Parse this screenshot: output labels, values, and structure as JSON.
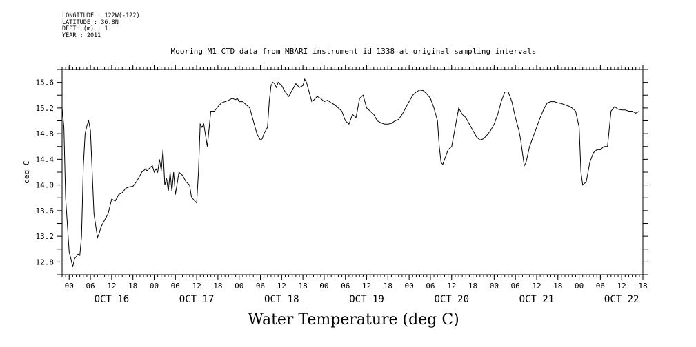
{
  "metadata": {
    "longitude": "LONGITUDE : 122W(-122)",
    "latitude": "LATITUDE : 36.8N",
    "depth": "DEPTH (m) : 1",
    "year": "YEAR : 2011"
  },
  "chart_data": {
    "type": "line",
    "title": "Mooring M1 CTD data from MBARI instrument id 1338 at original sampling intervals",
    "xlabel": "",
    "ylabel": "deg C",
    "footer_title": "Water Temperature (deg C)",
    "x_unit": "hours since 2011-10-16 00:00",
    "xlim": [
      -2,
      162
    ],
    "ylim": [
      12.6,
      15.8
    ],
    "yticks": [
      "12.8",
      "13.2",
      "13.6",
      "14.0",
      "14.4",
      "14.8",
      "15.2",
      "15.6"
    ],
    "hour_ticks": [
      {
        "h": 0,
        "label": "00"
      },
      {
        "h": 6,
        "label": "06"
      },
      {
        "h": 12,
        "label": "12"
      },
      {
        "h": 18,
        "label": "18"
      },
      {
        "h": 24,
        "label": "00"
      },
      {
        "h": 30,
        "label": "06"
      },
      {
        "h": 36,
        "label": "12"
      },
      {
        "h": 42,
        "label": "18"
      },
      {
        "h": 48,
        "label": "00"
      },
      {
        "h": 54,
        "label": "06"
      },
      {
        "h": 60,
        "label": "12"
      },
      {
        "h": 66,
        "label": "18"
      },
      {
        "h": 72,
        "label": "00"
      },
      {
        "h": 78,
        "label": "06"
      },
      {
        "h": 84,
        "label": "12"
      },
      {
        "h": 90,
        "label": "18"
      },
      {
        "h": 96,
        "label": "00"
      },
      {
        "h": 102,
        "label": "06"
      },
      {
        "h": 108,
        "label": "12"
      },
      {
        "h": 114,
        "label": "18"
      },
      {
        "h": 120,
        "label": "00"
      },
      {
        "h": 126,
        "label": "06"
      },
      {
        "h": 132,
        "label": "12"
      },
      {
        "h": 138,
        "label": "18"
      },
      {
        "h": 144,
        "label": "00"
      },
      {
        "h": 150,
        "label": "06"
      },
      {
        "h": 156,
        "label": "12"
      },
      {
        "h": 162,
        "label": "18"
      }
    ],
    "day_labels": [
      {
        "h": 12,
        "label": "OCT 16"
      },
      {
        "h": 36,
        "label": "OCT 17"
      },
      {
        "h": 60,
        "label": "OCT 18"
      },
      {
        "h": 84,
        "label": "OCT 19"
      },
      {
        "h": 108,
        "label": "OCT 20"
      },
      {
        "h": 132,
        "label": "OCT 21"
      },
      {
        "h": 156,
        "label": "OCT 22"
      }
    ],
    "series": [
      {
        "x": [
          -2,
          -1.5,
          -1,
          0,
          0.5,
          1,
          1.5,
          2,
          2.5,
          3,
          3.5,
          4,
          4.5,
          5,
          5.5,
          6,
          7,
          8,
          8.5,
          9,
          10,
          11,
          12,
          13,
          14,
          15,
          16,
          17,
          18,
          19,
          20,
          20.5,
          21,
          21.5,
          22,
          22.5,
          23,
          23.5,
          24,
          24.5,
          25,
          25.5,
          26,
          26.5,
          27,
          27.5,
          28,
          28.5,
          29,
          29.5,
          30,
          31,
          32,
          33,
          34,
          34.5,
          35,
          35.5,
          36,
          36.5,
          37,
          37.5,
          38,
          39,
          40,
          41,
          42,
          43,
          44,
          45,
          46,
          47,
          47.5,
          48,
          49,
          50,
          51,
          51.5,
          52,
          52.5,
          53,
          53.5,
          54,
          54.5,
          55,
          55.5,
          56,
          56.5,
          57,
          57.5,
          58,
          58.5,
          59,
          60,
          61,
          62,
          63,
          64,
          65,
          66,
          66.5,
          67,
          68,
          68.5,
          69,
          70,
          71,
          72,
          73,
          74,
          75,
          76,
          77,
          78,
          79,
          80,
          81,
          82,
          83,
          84,
          85,
          86,
          87,
          88,
          89,
          90,
          91,
          92,
          93,
          94,
          95,
          96,
          97,
          98,
          99,
          100,
          101,
          102,
          103,
          104,
          104.5,
          105,
          105.5,
          106,
          107,
          108,
          109,
          110,
          111,
          112,
          113,
          114,
          115,
          116,
          117,
          118,
          119,
          120,
          121,
          122,
          123,
          124,
          125,
          126,
          127,
          127.5,
          128,
          128.5,
          129,
          130,
          131,
          132,
          133,
          134,
          135,
          136,
          137,
          138,
          139,
          140,
          141,
          142,
          143,
          144,
          144.5,
          145,
          146,
          147,
          148,
          149,
          150,
          151,
          152,
          153,
          154,
          155,
          156,
          157,
          158,
          159,
          160,
          161
        ],
        "y": [
          15.2,
          14.9,
          13.8,
          12.95,
          12.85,
          12.72,
          12.85,
          12.88,
          12.92,
          12.9,
          13.2,
          14.3,
          14.8,
          14.92,
          15.0,
          14.85,
          13.55,
          13.18,
          13.25,
          13.35,
          13.45,
          13.55,
          13.78,
          13.75,
          13.85,
          13.88,
          13.95,
          13.97,
          13.98,
          14.05,
          14.15,
          14.2,
          14.22,
          14.25,
          14.22,
          14.25,
          14.28,
          14.3,
          14.2,
          14.25,
          14.2,
          14.4,
          14.22,
          14.55,
          14.0,
          14.1,
          13.9,
          14.2,
          13.9,
          14.2,
          13.85,
          14.2,
          14.15,
          14.05,
          14.0,
          13.82,
          13.78,
          13.75,
          13.72,
          14.2,
          14.95,
          14.9,
          14.95,
          14.6,
          15.15,
          15.15,
          15.22,
          15.28,
          15.3,
          15.32,
          15.35,
          15.33,
          15.35,
          15.3,
          15.3,
          15.25,
          15.2,
          15.1,
          15.0,
          14.9,
          14.8,
          14.75,
          14.7,
          14.72,
          14.8,
          14.85,
          14.9,
          15.3,
          15.55,
          15.6,
          15.58,
          15.52,
          15.6,
          15.55,
          15.45,
          15.38,
          15.48,
          15.58,
          15.52,
          15.55,
          15.65,
          15.6,
          15.4,
          15.3,
          15.32,
          15.38,
          15.35,
          15.3,
          15.32,
          15.28,
          15.25,
          15.2,
          15.15,
          15.0,
          14.95,
          15.1,
          15.05,
          15.35,
          15.4,
          15.2,
          15.15,
          15.1,
          15.0,
          14.97,
          14.95,
          14.95,
          14.96,
          15.0,
          15.02,
          15.1,
          15.2,
          15.3,
          15.4,
          15.45,
          15.48,
          15.47,
          15.42,
          15.35,
          15.2,
          15.0,
          14.6,
          14.35,
          14.32,
          14.4,
          14.55,
          14.6,
          14.9,
          15.2,
          15.1,
          15.05,
          14.95,
          14.85,
          14.75,
          14.7,
          14.72,
          14.78,
          14.85,
          14.95,
          15.1,
          15.3,
          15.45,
          15.45,
          15.3,
          15.05,
          14.85,
          14.7,
          14.5,
          14.3,
          14.35,
          14.6,
          14.75,
          14.9,
          15.05,
          15.18,
          15.28,
          15.3,
          15.3,
          15.28,
          15.27,
          15.25,
          15.23,
          15.2,
          15.15,
          14.9,
          14.2,
          14.0,
          14.05,
          14.35,
          14.5,
          14.55,
          14.55,
          14.6,
          14.6,
          15.15,
          15.22,
          15.18,
          15.17,
          15.17,
          15.15,
          15.15,
          15.12,
          15.15
        ]
      }
    ]
  }
}
